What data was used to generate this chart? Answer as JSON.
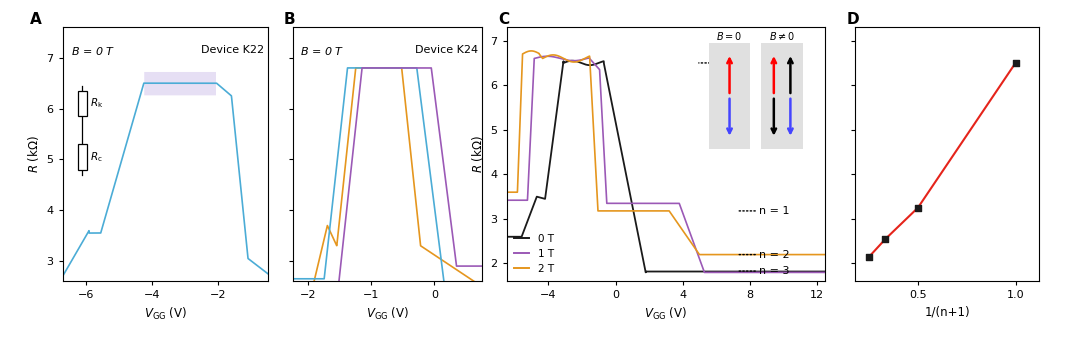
{
  "panel_A": {
    "label": "A",
    "title_left": "B = 0 T",
    "title_right": "Device K22",
    "xlim": [
      -6.7,
      -0.5
    ],
    "ylim": [
      2.6,
      7.6
    ],
    "xticks": [
      -6,
      -4,
      -2
    ],
    "yticks": [
      3,
      4,
      5,
      6,
      7
    ],
    "line_color": "#4BACD6",
    "shade_color": "#C9B8E8",
    "shade_alpha": 0.45
  },
  "panel_B": {
    "label": "B",
    "title_left": "B = 0 T",
    "title_right": "Device K24",
    "xlim": [
      -2.25,
      0.75
    ],
    "ylim": [
      2.6,
      7.6
    ],
    "xticks": [
      -2,
      -1,
      0
    ],
    "yticks": [
      3,
      4,
      5,
      6,
      7
    ],
    "colors": [
      "#4BACD6",
      "#9B59B6",
      "#E5961E"
    ]
  },
  "panel_C": {
    "label": "C",
    "xlim": [
      -6.5,
      12.5
    ],
    "ylim": [
      1.6,
      7.3
    ],
    "xticks": [
      -4,
      0,
      4,
      8,
      12
    ],
    "yticks": [
      2,
      3,
      4,
      5,
      6,
      7
    ],
    "colors": [
      "#1a1a1a",
      "#9B59B6",
      "#E5961E"
    ],
    "legend_labels": [
      "0 T",
      "1 T",
      "2 T"
    ]
  },
  "panel_D": {
    "label": "D",
    "xlabel": "1/(n+1)",
    "xlim": [
      0.18,
      1.12
    ],
    "ylim": [
      1.6,
      7.3
    ],
    "xticks": [
      0.5,
      1.0
    ],
    "yticks": [
      2,
      3,
      4,
      5,
      6,
      7
    ],
    "line_color": "#E5241B",
    "marker_color": "#1a1a1a",
    "points_x": [
      0.25,
      0.334,
      0.5,
      1.0
    ],
    "points_y": [
      2.15,
      2.55,
      3.25,
      6.5
    ]
  }
}
